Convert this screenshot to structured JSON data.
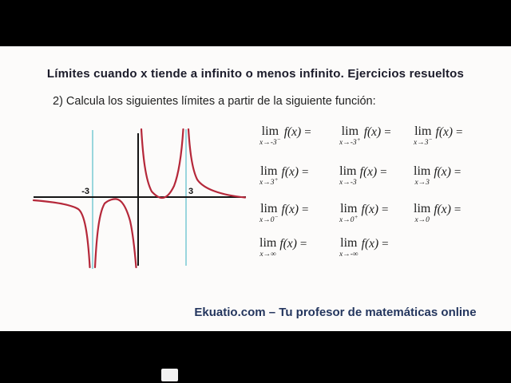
{
  "slide": {
    "title": "Límites cuando x tiende a infinito o menos infinito. Ejercicios resueltos",
    "prompt": "2) Calcula los siguientes límites a partir de la siguiente función:"
  },
  "graph": {
    "left_label": "-3",
    "right_label": "3"
  },
  "chart_data": {
    "type": "line",
    "title": "",
    "xlabel": "",
    "ylabel": "",
    "x_tick_labels": [
      "-3",
      "3"
    ],
    "vertical_asymptotes_x": [
      -3,
      0,
      3
    ],
    "drawn_asymptote_lines_x": [
      -3,
      3
    ],
    "horizontal_asymptote_y": 0,
    "grid": false,
    "legend": false,
    "branches": [
      {
        "domain": "x < -3",
        "behavior": "comes from y just below 0 as x→-∞ and falls to -∞ as x→-3⁻"
      },
      {
        "domain": "-3 < x < 0",
        "behavior": "rises from -∞, local max just below y=0 near x≈-1.5, falls to -∞ as x→0⁻"
      },
      {
        "domain": "0 < x < 3",
        "behavior": "falls from +∞, local min just above y=0 near x≈1.5, rises to +∞ as x→3⁻"
      },
      {
        "domain": "x > 3",
        "behavior": "falls from +∞ and flattens toward y just above 0 as x→+∞"
      }
    ]
  },
  "limits": {
    "lim_label": "lim",
    "func_label": "f(x)",
    "equals": "=",
    "rows": [
      [
        {
          "approach": "x→-3",
          "sign": "−"
        },
        {
          "approach": "x→-3",
          "sign": "+"
        },
        {
          "approach": "x→3",
          "sign": "−"
        }
      ],
      [
        {
          "approach": "x→3",
          "sign": "+"
        },
        {
          "approach": "x→-3",
          "sign": ""
        },
        {
          "approach": "x→3",
          "sign": ""
        }
      ],
      [
        {
          "approach": "x→0",
          "sign": "−"
        },
        {
          "approach": "x→0",
          "sign": "+"
        },
        {
          "approach": "x→0",
          "sign": ""
        }
      ],
      [
        {
          "approach": "x→∞",
          "sign": ""
        },
        {
          "approach": "x→-∞",
          "sign": ""
        }
      ]
    ]
  },
  "footer": {
    "text": "Ekuatio.com – Tu profesor de matemáticas online"
  },
  "colors": {
    "frame": "#000000",
    "background": "#fcfbfa",
    "title": "#1b1b2a",
    "footer": "#24365e",
    "curve": "#b5283a",
    "asymptote": "#8ed2da",
    "axis": "#141414"
  }
}
